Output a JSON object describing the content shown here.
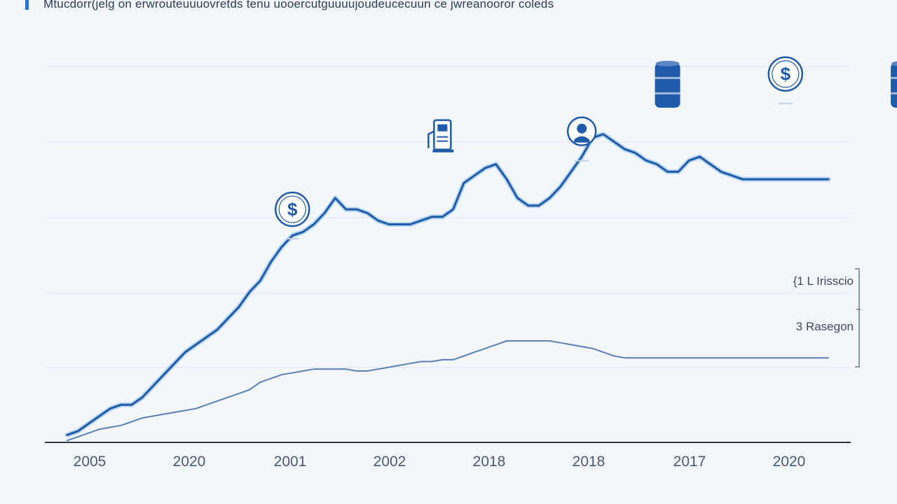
{
  "chart_data": {
    "type": "line",
    "title": "Mtucdorr(jelg on erwrouteuuuovretds tenu uooercutguuuujoudeucecuun ce jwreanooror coleds",
    "xlabel": "",
    "ylabel": "",
    "categories": [
      "2005",
      "2020",
      "2001",
      "2002",
      "2018",
      "2018",
      "2017",
      "2020"
    ],
    "x": [
      0,
      0.5,
      1,
      1.5,
      2,
      2.5,
      3,
      3.5,
      4,
      4.5,
      5,
      5.5,
      6,
      6.5,
      7,
      7.5,
      8,
      8.5,
      9,
      9.5,
      10,
      10.5,
      11,
      11.5,
      12,
      12.5,
      13,
      13.5,
      14,
      14.5,
      15,
      15.5,
      16,
      16.5,
      17,
      17.5,
      18,
      18.5,
      19,
      19.5,
      20,
      20.5,
      21,
      21.5,
      22,
      22.5,
      23,
      23.5,
      24,
      24.5,
      25,
      25.5,
      26,
      26.5,
      27,
      27.5,
      28,
      28.5,
      29,
      29.5,
      30,
      30.5,
      31,
      31.5,
      32,
      32.5,
      33,
      33.5,
      34,
      34.5,
      35,
      35.5
    ],
    "ylim": [
      0,
      100
    ],
    "grid": true,
    "series": [
      {
        "name": "",
        "values": [
          2,
          3,
          5,
          7,
          9,
          10,
          10,
          12,
          15,
          18,
          21,
          24,
          26,
          28,
          30,
          33,
          36,
          40,
          43,
          48,
          52,
          55,
          56,
          58,
          61,
          65,
          62,
          62,
          61,
          59,
          58,
          58,
          58,
          59,
          60,
          60,
          62,
          69,
          71,
          73,
          74,
          70,
          65,
          63,
          63,
          65,
          68,
          72,
          76,
          81,
          82,
          80,
          78,
          77,
          75,
          74,
          72,
          72,
          75,
          76,
          74,
          72,
          71,
          70,
          70,
          70,
          70,
          70,
          70,
          70,
          70,
          70
        ],
        "color": "#1f5ba8"
      },
      {
        "name": "",
        "values": [
          0.5,
          1.5,
          2.5,
          3.5,
          4,
          4.5,
          5.5,
          6.5,
          7,
          7.5,
          8,
          8.5,
          9,
          10,
          11,
          12,
          13,
          14,
          16,
          17,
          18,
          18.5,
          19,
          19.5,
          19.5,
          19.5,
          19.5,
          19,
          19,
          19.5,
          20,
          20.5,
          21,
          21.5,
          21.5,
          22,
          22,
          23,
          24,
          25,
          26,
          27,
          27,
          27,
          27,
          27,
          26.5,
          26,
          25.5,
          25,
          24,
          23,
          22.5,
          22.5,
          22.5,
          22.5,
          22.5,
          22.5,
          22.5,
          22.5,
          22.5,
          22.5,
          22.5,
          22.5,
          22.5,
          22.5,
          22.5,
          22.5,
          22.5,
          22.5,
          22.5,
          22.5
        ],
        "color": "#5a7fb6"
      }
    ],
    "annotations": [
      {
        "text": "{1 L Irisscio"
      },
      {
        "text": "3 Rasegon"
      }
    ],
    "icons": [
      {
        "name": "dollar-coin-icon",
        "x": 10.5,
        "y": 62,
        "color": "#1f5ba8"
      },
      {
        "name": "fuel-pump-icon",
        "x": 17.5,
        "y": 82,
        "color": "#1f5ba8"
      },
      {
        "name": "medical-worker-icon",
        "x": 24,
        "y": 82,
        "color": "#1f5ba8"
      },
      {
        "name": "oil-barrel-icon",
        "x": 28,
        "y": 95,
        "color": "#1f5ba8"
      },
      {
        "name": "dollar-coin-icon",
        "x": 33.5,
        "y": 98,
        "color": "#1f5ba8"
      },
      {
        "name": "oil-barrel-icon",
        "x": 39,
        "y": 95,
        "color": "#1f5ba8"
      },
      {
        "name": "fuel-pump-icon",
        "x": 43.5,
        "y": 112,
        "color": "#1f5ba8"
      },
      {
        "name": "cargo-ship-icon",
        "x": 45.5,
        "y": 85,
        "color": "#1f5ba8"
      }
    ]
  }
}
